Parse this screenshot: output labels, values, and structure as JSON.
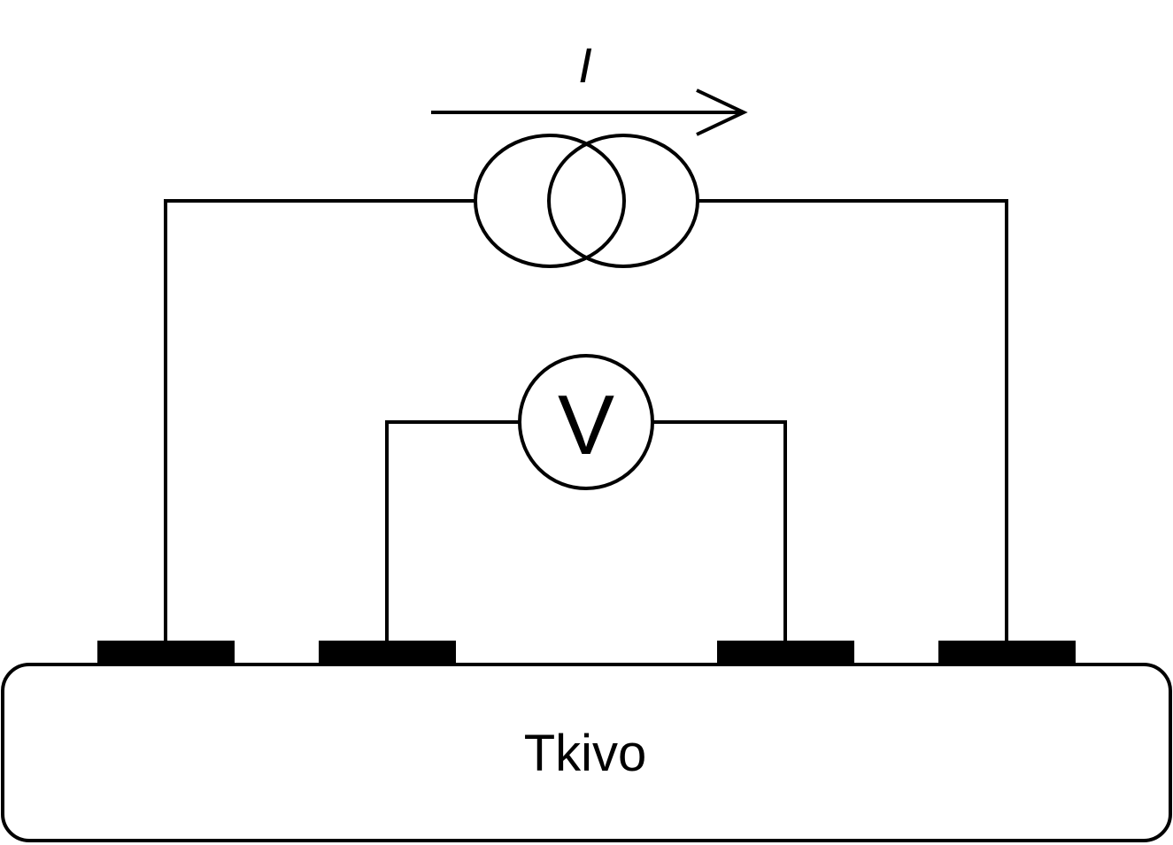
{
  "diagram": {
    "current_label": "I",
    "voltmeter_label": "V",
    "tissue_label": "Tkivo"
  }
}
